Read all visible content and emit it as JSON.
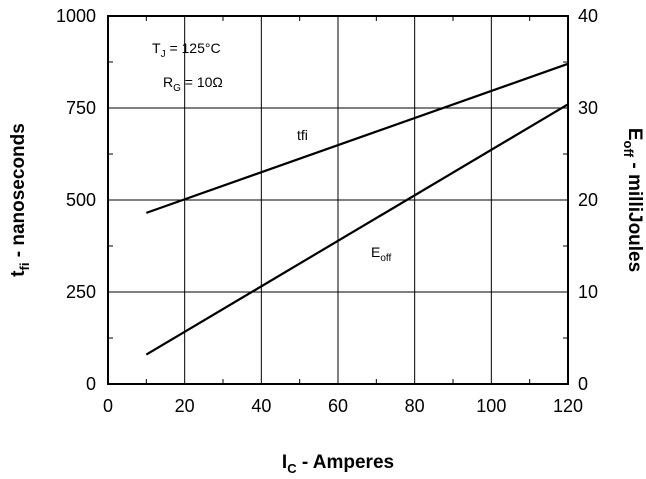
{
  "chart_data": {
    "type": "line",
    "title": "",
    "xlabel": {
      "main": "I",
      "sub": "C",
      "rest": " - Amperes"
    },
    "ylabel_left": {
      "main": "t",
      "sub": "fi",
      "rest": " - nanoseconds"
    },
    "ylabel_right": {
      "main": "E",
      "sub": "off",
      "rest": " - milliJoules"
    },
    "xlim": [
      0,
      120
    ],
    "ylim_left": [
      0,
      1000
    ],
    "ylim_right": [
      0,
      40
    ],
    "x_ticks": [
      "0",
      "20",
      "40",
      "60",
      "80",
      "100",
      "120"
    ],
    "y_left_ticks": [
      "0",
      "250",
      "500",
      "750",
      "1000"
    ],
    "y_right_ticks": [
      "0",
      "10",
      "20",
      "30",
      "40"
    ],
    "grid": true,
    "series": [
      {
        "name": "tfi",
        "axis": "left",
        "x": [
          10,
          120
        ],
        "y": [
          465,
          870
        ],
        "label": {
          "main": "tfi",
          "sub": ""
        }
      },
      {
        "name": "Eoff",
        "axis": "right",
        "x": [
          10,
          120
        ],
        "y": [
          3.2,
          30.4
        ],
        "label": {
          "main": "E",
          "sub": "off"
        }
      }
    ],
    "annotations": [
      {
        "id": "tj",
        "main": "T",
        "sub": "J",
        "rest": " = 125°C"
      },
      {
        "id": "rg",
        "main": "R",
        "sub": "G",
        "rest": " = 10Ω"
      }
    ]
  }
}
